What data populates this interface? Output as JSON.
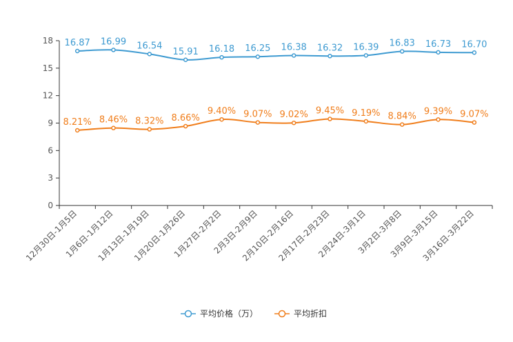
{
  "chart_data": {
    "type": "line",
    "categories": [
      "12月30日-1月5日",
      "1月6日-1月12日",
      "1月13日-1月19日",
      "1月20日-1月26日",
      "1月27日-2月2日",
      "2月3日-2月9日",
      "2月10日-2月16日",
      "2月17日-2月23日",
      "2月24日-3月1日",
      "3月2日-3月8日",
      "3月9日-3月15日",
      "3月16日-3月22日"
    ],
    "series": [
      {
        "name": "平均价格（万）",
        "color": "#3d9ad1",
        "values": [
          16.87,
          16.99,
          16.54,
          15.91,
          16.18,
          16.25,
          16.38,
          16.32,
          16.39,
          16.83,
          16.73,
          16.7
        ],
        "labels": [
          "16.87",
          "16.99",
          "16.54",
          "15.91",
          "16.18",
          "16.25",
          "16.38",
          "16.32",
          "16.39",
          "16.83",
          "16.73",
          "16.70"
        ]
      },
      {
        "name": "平均折扣",
        "color": "#f07d1a",
        "values": [
          8.21,
          8.46,
          8.32,
          8.66,
          9.4,
          9.07,
          9.02,
          9.45,
          9.19,
          8.84,
          9.39,
          9.07
        ],
        "labels": [
          "8.21%",
          "8.46%",
          "8.32%",
          "8.66%",
          "9.40%",
          "9.07%",
          "9.02%",
          "9.45%",
          "9.19%",
          "8.84%",
          "9.39%",
          "9.07%"
        ]
      }
    ],
    "ylim": [
      0,
      18
    ],
    "yticks": [
      0,
      3,
      6,
      9,
      12,
      15,
      18
    ],
    "legend_position": "bottom-center"
  }
}
